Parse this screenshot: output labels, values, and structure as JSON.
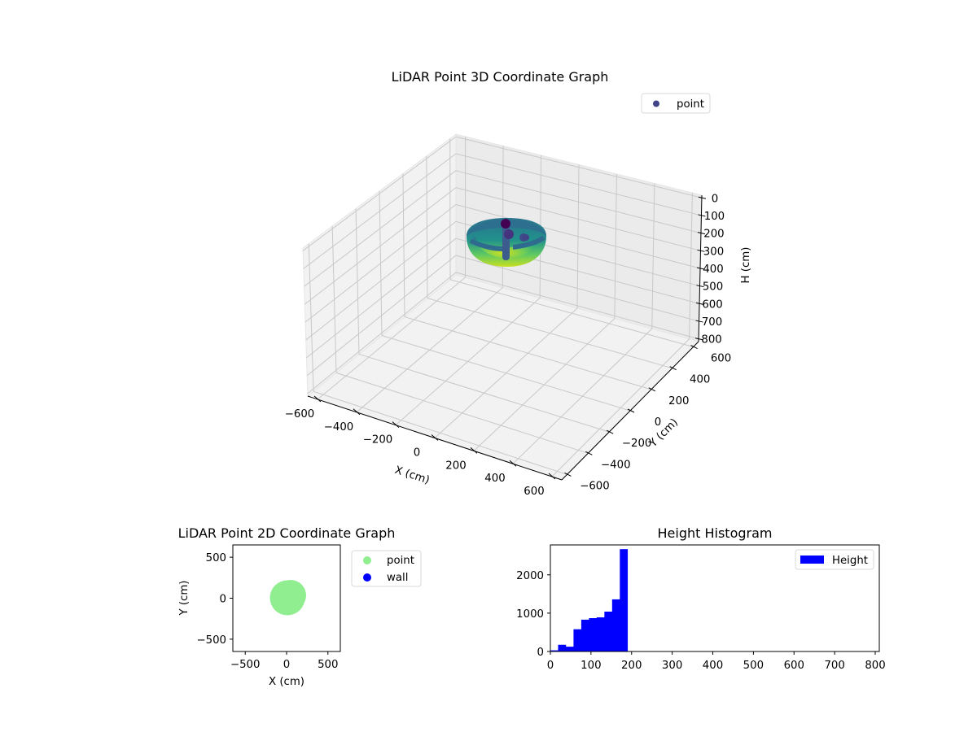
{
  "chart_data": [
    {
      "type": "scatter3d",
      "title": "LiDAR Point 3D Coordinate Graph",
      "xlabel": "X (cm)",
      "ylabel": "Y (cm)",
      "zlabel": "H (cm)",
      "xlim": [
        -650,
        650
      ],
      "ylim": [
        -650,
        650
      ],
      "zlim": [
        800,
        0
      ],
      "xticks": [
        "−600",
        "−400",
        "−200",
        "0",
        "200",
        "400",
        "600"
      ],
      "yticks": [
        "−600",
        "−400",
        "−200",
        "0",
        "200",
        "400",
        "600"
      ],
      "zticks": [
        "0",
        "100",
        "200",
        "300",
        "400",
        "500",
        "600",
        "700",
        "800"
      ],
      "legend": [
        {
          "label": "point",
          "color": "#414487"
        }
      ],
      "colormap": "viridis",
      "description": "Bowl-shaped point cloud centered near (0,0), radius ~200 cm, heights ~0-190 cm, with a few dark vertical column clusters near the center"
    },
    {
      "type": "scatter",
      "title": "LiDAR Point 2D Coordinate Graph",
      "xlabel": "X (cm)",
      "ylabel": "Y (cm)",
      "xlim": [
        -650,
        650
      ],
      "ylim": [
        -650,
        650
      ],
      "xticks": [
        "−500",
        "0",
        "500"
      ],
      "yticks": [
        "500",
        "0",
        "−500"
      ],
      "legend": [
        {
          "label": "point",
          "color": "#90ee90"
        },
        {
          "label": "wall",
          "color": "#0000ff"
        }
      ],
      "series": [
        {
          "name": "point",
          "shape": "disk",
          "center": [
            0,
            0
          ],
          "radius": 200,
          "color": "#90ee90"
        },
        {
          "name": "wall",
          "points": [],
          "color": "#0000ff"
        }
      ]
    },
    {
      "type": "bar",
      "title": "Height Histogram",
      "xlabel": "",
      "ylabel": "",
      "xlim": [
        0,
        810
      ],
      "ylim": [
        0,
        2780
      ],
      "xticks": [
        "0",
        "100",
        "200",
        "300",
        "400",
        "500",
        "600",
        "700",
        "800"
      ],
      "yticks": [
        "0",
        "1000",
        "2000"
      ],
      "legend": [
        {
          "label": "Height",
          "color": "#0000ff"
        }
      ],
      "bin_width": 19,
      "categories": [
        "0-19",
        "19-38",
        "38-57",
        "57-76",
        "76-95",
        "95-114",
        "114-133",
        "133-152",
        "152-171",
        "171-190"
      ],
      "values": [
        30,
        175,
        125,
        580,
        830,
        870,
        890,
        1040,
        1360,
        2670
      ]
    }
  ]
}
